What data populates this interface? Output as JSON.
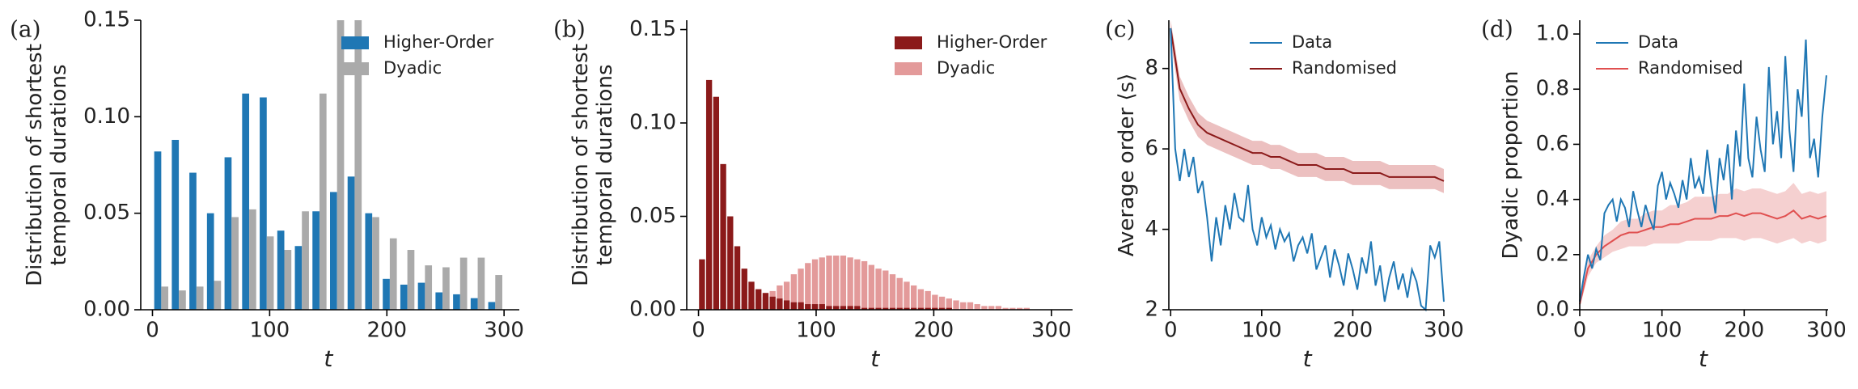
{
  "chart_data": [
    {
      "type": "histogram",
      "panel_label": "(a)",
      "bar_mode": "grouped",
      "ylabel": [
        "Distribution of shortest",
        "temporal durations"
      ],
      "xlabel": "t",
      "bins": [
        0,
        15,
        30,
        45,
        60,
        75,
        90,
        105,
        120,
        135,
        150,
        165,
        180,
        195,
        210,
        225,
        240,
        255,
        270,
        285,
        300
      ],
      "series": [
        {
          "name": "Higher-Order",
          "color": "#1f77b4",
          "values": [
            0.082,
            0.088,
            0.071,
            0.05,
            0.079,
            0.112,
            0.11,
            0.041,
            0.033,
            0.051,
            0.061,
            0.069,
            0.05,
            0.016,
            0.013,
            0.014,
            0.009,
            0.008,
            0.006,
            0.004
          ]
        },
        {
          "name": "Dyadic",
          "color": "#aaaaaa",
          "values": [
            0.012,
            0.01,
            0.012,
            0.015,
            0.048,
            0.052,
            0.038,
            0.031,
            0.051,
            0.112,
            0.15,
            0.15,
            0.048,
            0.037,
            0.031,
            0.023,
            0.022,
            0.027,
            0.027,
            0.018
          ]
        }
      ],
      "xlim": [
        -10,
        313
      ],
      "ylim": [
        0,
        0.15
      ],
      "xticks": [
        0,
        100,
        200,
        300
      ],
      "yticks": [
        {
          "value": 0,
          "label": "0.00"
        },
        {
          "value": 0.05,
          "label": "0.05"
        },
        {
          "value": 0.1,
          "label": "0.10"
        },
        {
          "value": 0.15,
          "label": "0.15"
        }
      ],
      "legend": "upper right"
    },
    {
      "type": "histogram",
      "panel_label": "(b)",
      "bar_mode": "overlay",
      "ylabel": [
        "Distribution of shortest",
        "temporal durations"
      ],
      "xlabel": "t",
      "bins": [
        0,
        6,
        12,
        18,
        24,
        30,
        36,
        42,
        48,
        54,
        60,
        66,
        72,
        78,
        84,
        90,
        96,
        102,
        108,
        114,
        120,
        126,
        132,
        138,
        144,
        150,
        156,
        162,
        168,
        174,
        180,
        186,
        192,
        198,
        204,
        210,
        216,
        222,
        228,
        234,
        240,
        246,
        252,
        258,
        264,
        270,
        276,
        282,
        288,
        294,
        300
      ],
      "series": [
        {
          "name": "Higher-Order",
          "color": "#8b1a1a",
          "values": [
            0.027,
            0.123,
            0.114,
            0.078,
            0.05,
            0.034,
            0.022,
            0.015,
            0.011,
            0.009,
            0.007,
            0.006,
            0.005,
            0.004,
            0.004,
            0.003,
            0.003,
            0.003,
            0.002,
            0.002,
            0.002,
            0.002,
            0.002,
            0.001,
            0.001,
            0.001,
            0.001,
            0.001,
            0.001,
            0.001,
            0.001,
            0.001,
            0.001,
            0.001,
            0.001,
            0.001,
            0,
            0,
            0,
            0,
            0,
            0,
            0,
            0,
            0,
            0,
            0,
            0,
            0,
            0
          ]
        },
        {
          "name": "Dyadic",
          "color": "#e39a9a",
          "values": [
            0,
            0,
            0,
            0.001,
            0.001,
            0.002,
            0.003,
            0.004,
            0.006,
            0.007,
            0.01,
            0.013,
            0.015,
            0.019,
            0.022,
            0.025,
            0.027,
            0.028,
            0.029,
            0.029,
            0.029,
            0.028,
            0.027,
            0.026,
            0.024,
            0.022,
            0.021,
            0.019,
            0.017,
            0.015,
            0.013,
            0.011,
            0.01,
            0.008,
            0.007,
            0.006,
            0.005,
            0.004,
            0.004,
            0.003,
            0.002,
            0.002,
            0.002,
            0.001,
            0.001,
            0.001,
            0.001,
            0,
            0,
            0
          ]
        }
      ],
      "xlim": [
        -10,
        318
      ],
      "ylim": [
        0,
        0.155
      ],
      "xticks": [
        0,
        100,
        200,
        300
      ],
      "yticks": [
        {
          "value": 0,
          "label": "0.00"
        },
        {
          "value": 0.05,
          "label": "0.05"
        },
        {
          "value": 0.1,
          "label": "0.10"
        },
        {
          "value": 0.15,
          "label": "0.15"
        }
      ],
      "legend": "upper right"
    },
    {
      "type": "line",
      "panel_label": "(c)",
      "ylabel": [
        "Average order ⟨s⟩"
      ],
      "xlabel": "t",
      "series": [
        {
          "name": "Data",
          "color": "#1f77b4",
          "x": [
            0,
            5,
            10,
            15,
            20,
            25,
            30,
            35,
            40,
            45,
            50,
            55,
            60,
            65,
            70,
            75,
            80,
            85,
            90,
            95,
            100,
            105,
            110,
            115,
            120,
            125,
            130,
            135,
            140,
            145,
            150,
            155,
            160,
            165,
            170,
            175,
            180,
            185,
            190,
            195,
            200,
            205,
            210,
            215,
            220,
            225,
            230,
            235,
            240,
            245,
            250,
            255,
            260,
            265,
            270,
            275,
            280,
            285,
            290,
            295,
            300
          ],
          "values": [
            9.0,
            6.0,
            5.2,
            6.0,
            5.3,
            5.8,
            4.9,
            5.2,
            4.3,
            3.2,
            4.3,
            3.6,
            4.6,
            4.0,
            4.9,
            4.3,
            4.2,
            5.1,
            4.0,
            3.6,
            4.3,
            3.8,
            4.1,
            3.5,
            4.0,
            3.7,
            3.9,
            3.2,
            3.6,
            3.8,
            3.4,
            3.9,
            3.0,
            3.3,
            3.6,
            2.8,
            3.5,
            3.1,
            2.6,
            3.4,
            3.0,
            2.5,
            3.3,
            2.9,
            3.7,
            2.6,
            3.1,
            2.2,
            2.8,
            3.2,
            2.5,
            2.9,
            2.3,
            3.0,
            2.7,
            2.1,
            2.0,
            3.6,
            3.3,
            3.7,
            2.2
          ]
        },
        {
          "name": "Randomised",
          "color": "#8b1a1a",
          "band_color": "#ecc0c0",
          "x": [
            0,
            10,
            20,
            30,
            40,
            50,
            60,
            70,
            80,
            90,
            100,
            110,
            120,
            130,
            140,
            150,
            160,
            170,
            180,
            190,
            200,
            210,
            220,
            230,
            240,
            250,
            260,
            270,
            280,
            290,
            300
          ],
          "values": [
            9.0,
            7.5,
            7.0,
            6.6,
            6.4,
            6.3,
            6.2,
            6.1,
            6.0,
            5.9,
            5.9,
            5.8,
            5.8,
            5.7,
            5.6,
            5.6,
            5.6,
            5.5,
            5.5,
            5.5,
            5.4,
            5.4,
            5.4,
            5.4,
            5.3,
            5.3,
            5.3,
            5.3,
            5.3,
            5.3,
            5.2
          ],
          "lower": [
            8.7,
            7.2,
            6.7,
            6.3,
            6.1,
            6.0,
            5.9,
            5.8,
            5.7,
            5.6,
            5.6,
            5.5,
            5.5,
            5.4,
            5.3,
            5.3,
            5.3,
            5.2,
            5.2,
            5.2,
            5.1,
            5.1,
            5.1,
            5.1,
            5.0,
            5.0,
            5.0,
            5.0,
            5.0,
            5.0,
            4.9
          ],
          "upper": [
            9.2,
            7.8,
            7.3,
            6.9,
            6.7,
            6.6,
            6.5,
            6.4,
            6.3,
            6.2,
            6.2,
            6.1,
            6.1,
            6.0,
            5.9,
            5.9,
            5.9,
            5.8,
            5.8,
            5.8,
            5.7,
            5.7,
            5.7,
            5.7,
            5.6,
            5.6,
            5.6,
            5.6,
            5.6,
            5.6,
            5.5
          ]
        }
      ],
      "xlim": [
        -2,
        300
      ],
      "ylim": [
        2,
        9.2
      ],
      "xticks": [
        0,
        100,
        200,
        300
      ],
      "yticks": [
        2,
        4,
        6,
        8
      ],
      "legend": "upper center"
    },
    {
      "type": "line",
      "panel_label": "(d)",
      "ylabel": [
        "Dyadic proportion"
      ],
      "xlabel": "t",
      "series": [
        {
          "name": "Data",
          "color": "#1f77b4",
          "x": [
            0,
            5,
            10,
            15,
            20,
            25,
            30,
            35,
            40,
            45,
            50,
            55,
            60,
            65,
            70,
            75,
            80,
            85,
            90,
            95,
            100,
            105,
            110,
            115,
            120,
            125,
            130,
            135,
            140,
            145,
            150,
            155,
            160,
            165,
            170,
            175,
            180,
            185,
            190,
            195,
            200,
            205,
            210,
            215,
            220,
            225,
            230,
            235,
            240,
            245,
            250,
            255,
            260,
            265,
            270,
            275,
            280,
            285,
            290,
            295,
            300
          ],
          "values": [
            0.03,
            0.12,
            0.2,
            0.15,
            0.22,
            0.18,
            0.35,
            0.38,
            0.4,
            0.32,
            0.4,
            0.37,
            0.3,
            0.43,
            0.36,
            0.3,
            0.38,
            0.33,
            0.29,
            0.45,
            0.5,
            0.4,
            0.46,
            0.42,
            0.37,
            0.47,
            0.4,
            0.55,
            0.44,
            0.48,
            0.42,
            0.58,
            0.45,
            0.35,
            0.55,
            0.47,
            0.6,
            0.4,
            0.65,
            0.52,
            0.82,
            0.55,
            0.48,
            0.7,
            0.58,
            0.5,
            0.88,
            0.6,
            0.72,
            0.55,
            0.92,
            0.65,
            0.5,
            0.8,
            0.7,
            0.98,
            0.55,
            0.62,
            0.48,
            0.7,
            0.85
          ]
        },
        {
          "name": "Randomised",
          "color": "#e05050",
          "band_color": "#f5d0d0",
          "x": [
            0,
            10,
            20,
            30,
            40,
            50,
            60,
            70,
            80,
            90,
            100,
            110,
            120,
            130,
            140,
            150,
            160,
            170,
            180,
            190,
            200,
            210,
            220,
            230,
            240,
            250,
            260,
            270,
            280,
            290,
            300
          ],
          "values": [
            0.02,
            0.15,
            0.2,
            0.23,
            0.25,
            0.27,
            0.28,
            0.28,
            0.29,
            0.3,
            0.3,
            0.31,
            0.31,
            0.32,
            0.33,
            0.33,
            0.33,
            0.34,
            0.34,
            0.35,
            0.34,
            0.35,
            0.35,
            0.34,
            0.33,
            0.34,
            0.36,
            0.33,
            0.34,
            0.33,
            0.34
          ],
          "lower": [
            0.01,
            0.12,
            0.17,
            0.19,
            0.21,
            0.22,
            0.23,
            0.23,
            0.23,
            0.24,
            0.24,
            0.24,
            0.24,
            0.25,
            0.25,
            0.25,
            0.25,
            0.26,
            0.26,
            0.26,
            0.25,
            0.26,
            0.26,
            0.25,
            0.24,
            0.25,
            0.26,
            0.24,
            0.25,
            0.24,
            0.25
          ],
          "upper": [
            0.03,
            0.18,
            0.23,
            0.27,
            0.29,
            0.32,
            0.33,
            0.33,
            0.35,
            0.36,
            0.36,
            0.38,
            0.38,
            0.39,
            0.41,
            0.41,
            0.41,
            0.42,
            0.42,
            0.44,
            0.43,
            0.44,
            0.44,
            0.43,
            0.42,
            0.43,
            0.46,
            0.42,
            0.43,
            0.42,
            0.43
          ]
        }
      ],
      "xlim": [
        0,
        302
      ],
      "ylim": [
        0,
        1.05
      ],
      "xticks": [
        0,
        100,
        200,
        300
      ],
      "yticks": [
        {
          "value": 0,
          "label": "0.0"
        },
        {
          "value": 0.2,
          "label": "0.2"
        },
        {
          "value": 0.4,
          "label": "0.4"
        },
        {
          "value": 0.6,
          "label": "0.6"
        },
        {
          "value": 0.8,
          "label": "0.8"
        },
        {
          "value": 1,
          "label": "1.0"
        }
      ],
      "legend": "upper left"
    }
  ]
}
